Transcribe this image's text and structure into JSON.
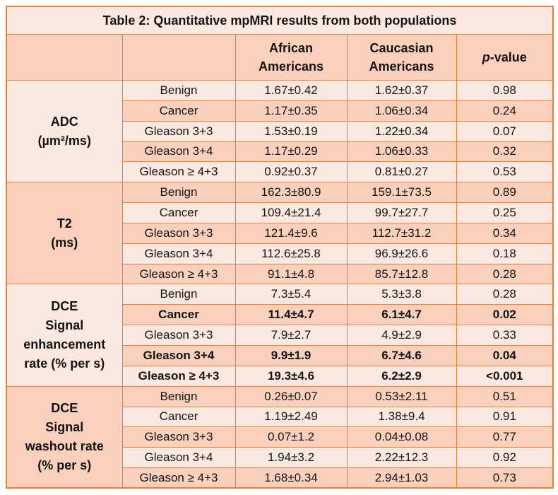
{
  "title": "Table 2: Quantitative mpMRI results from both populations",
  "headers": {
    "african_americans": [
      "African",
      "Americans"
    ],
    "caucasian_americans": [
      "Caucasian",
      "Americans"
    ],
    "p_value": {
      "italic": "p",
      "rest": "-value"
    }
  },
  "sections": [
    {
      "id": "adc",
      "group_lines": [
        "ADC",
        "(µm²/ms)"
      ],
      "rows": [
        {
          "label": "Benign",
          "aa": "1.67±0.42",
          "ca": "1.62±0.37",
          "p": "0.98",
          "bold": false
        },
        {
          "label": "Cancer",
          "aa": "1.17±0.35",
          "ca": "1.06±0.34",
          "p": "0.24",
          "bold": false
        },
        {
          "label": "Gleason 3+3",
          "aa": "1.53±0.19",
          "ca": "1.22±0.34",
          "p": "0.07",
          "bold": false
        },
        {
          "label": "Gleason 3+4",
          "aa": "1.17±0.29",
          "ca": "1.06±0.33",
          "p": "0.32",
          "bold": false
        },
        {
          "label": "Gleason ≥ 4+3",
          "aa": "0.92±0.37",
          "ca": "0.81±0.27",
          "p": "0.53",
          "bold": false
        }
      ]
    },
    {
      "id": "t2",
      "group_lines": [
        "T2",
        "(ms)"
      ],
      "rows": [
        {
          "label": "Benign",
          "aa": "162.3±80.9",
          "ca": "159.1±73.5",
          "p": "0.89",
          "bold": false
        },
        {
          "label": "Cancer",
          "aa": "109.4±21.4",
          "ca": "99.7±27.7",
          "p": "0.25",
          "bold": false
        },
        {
          "label": "Gleason 3+3",
          "aa": "121.4±9.6",
          "ca": "112.7±31.2",
          "p": "0.34",
          "bold": false
        },
        {
          "label": "Gleason 3+4",
          "aa": "112.6±25.8",
          "ca": "96.9±26.6",
          "p": "0.18",
          "bold": false
        },
        {
          "label": "Gleason ≥ 4+3",
          "aa": "91.1±4.8",
          "ca": "85.7±12.8",
          "p": "0.28",
          "bold": false
        }
      ]
    },
    {
      "id": "dce-signal-enhancement-rate",
      "group_lines": [
        "DCE",
        "Signal",
        "enhancement",
        "rate (% per s)"
      ],
      "rows": [
        {
          "label": "Benign",
          "aa": "7.3±5.4",
          "ca": "5.3±3.8",
          "p": "0.28",
          "bold": false
        },
        {
          "label": "Cancer",
          "aa": "11.4±4.7",
          "ca": "6.1±4.7",
          "p": "0.02",
          "bold": true
        },
        {
          "label": "Gleason 3+3",
          "aa": "7.9±2.7",
          "ca": "4.9±2.9",
          "p": "0.33",
          "bold": false
        },
        {
          "label": "Gleason 3+4",
          "aa": "9.9±1.9",
          "ca": "6.7±4.6",
          "p": "0.04",
          "bold": true
        },
        {
          "label": "Gleason ≥ 4+3",
          "aa": "19.3±4.6",
          "ca": "6.2±2.9",
          "p": "<0.001",
          "bold": true
        }
      ]
    },
    {
      "id": "dce-signal-washout-rate",
      "group_lines": [
        "DCE",
        "Signal",
        "washout rate",
        "(% per s)"
      ],
      "rows": [
        {
          "label": "Benign",
          "aa": "0.26±0.07",
          "ca": "0.53±2.11",
          "p": "0.51",
          "bold": false
        },
        {
          "label": "Cancer",
          "aa": "1.19±2.49",
          "ca": "1.38±9.4",
          "p": "0.91",
          "bold": false
        },
        {
          "label": "Gleason 3+3",
          "aa": "0.07±1.2",
          "ca": "0.04±0.08",
          "p": "0.77",
          "bold": false
        },
        {
          "label": "Gleason 3+4",
          "aa": "1.94±3.2",
          "ca": "2.22±12.3",
          "p": "0.92",
          "bold": false
        },
        {
          "label": "Gleason ≥ 4+3",
          "aa": "1.68±0.34",
          "ca": "2.94±1.03",
          "p": "0.73",
          "bold": false
        }
      ]
    }
  ],
  "colors": {
    "border": "#ED7D31",
    "band_light": "#FBE9E1",
    "band_dark": "#F8D0BC",
    "text": "#141414"
  }
}
